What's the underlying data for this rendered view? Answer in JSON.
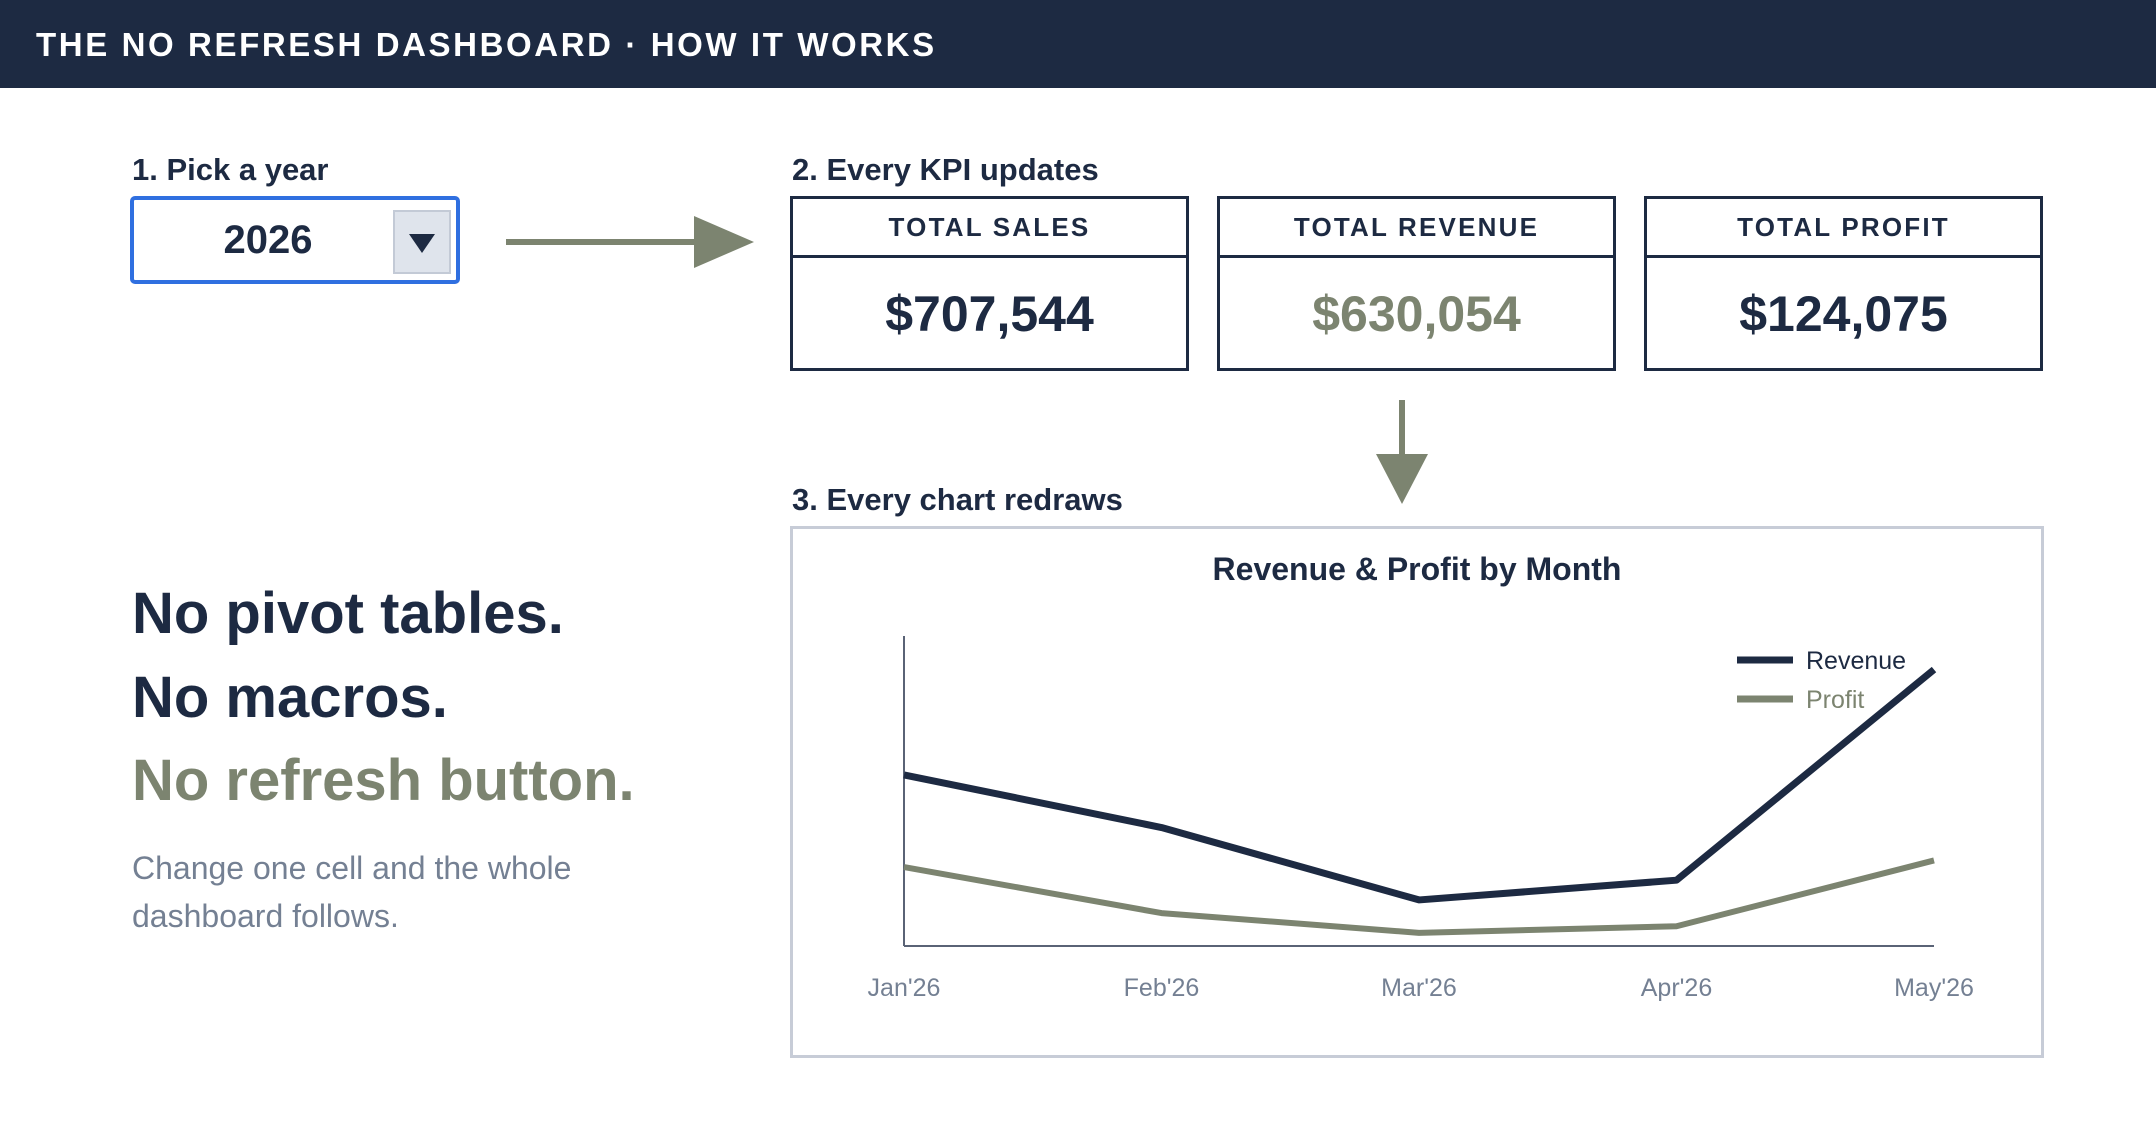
{
  "header": {
    "title": "THE NO REFRESH DASHBOARD · HOW IT WORKS"
  },
  "steps": {
    "pick_year": "1. Pick a year",
    "kpi_updates": "2. Every KPI updates",
    "chart_redraws": "3. Every chart redraws"
  },
  "year_selector": {
    "value": "2026",
    "dropdown_icon": "chevron-down-icon"
  },
  "kpis": [
    {
      "label": "TOTAL SALES",
      "value": "$707,544",
      "color": "#1d2a42"
    },
    {
      "label": "TOTAL REVENUE",
      "value": "$630,054",
      "color": "#7c8470"
    },
    {
      "label": "TOTAL PROFIT",
      "value": "$124,075",
      "color": "#1d2a42"
    }
  ],
  "taglines": {
    "line1": "No pivot tables.",
    "line2": "No macros.",
    "line3": "No refresh button.",
    "subtext": "Change one cell and the whole dashboard follows."
  },
  "colors": {
    "navy": "#1d2a42",
    "accent": "#7c8470",
    "select_border": "#2f6fe0",
    "muted_text": "#748093"
  },
  "chart_data": {
    "type": "line",
    "title": "Revenue & Profit by Month",
    "categories": [
      "Jan'26",
      "Feb'26",
      "Mar'26",
      "Apr'26",
      "May'26"
    ],
    "series": [
      {
        "name": "Revenue",
        "color": "#1d2a42",
        "values": [
          130000,
          90000,
          35000,
          50000,
          210000
        ]
      },
      {
        "name": "Profit",
        "color": "#7c8470",
        "values": [
          60000,
          25000,
          10000,
          15000,
          65000
        ]
      }
    ],
    "ylim": [
      0,
      215000
    ],
    "y_axis_labels": false,
    "grid": false,
    "legend": "top-right"
  }
}
